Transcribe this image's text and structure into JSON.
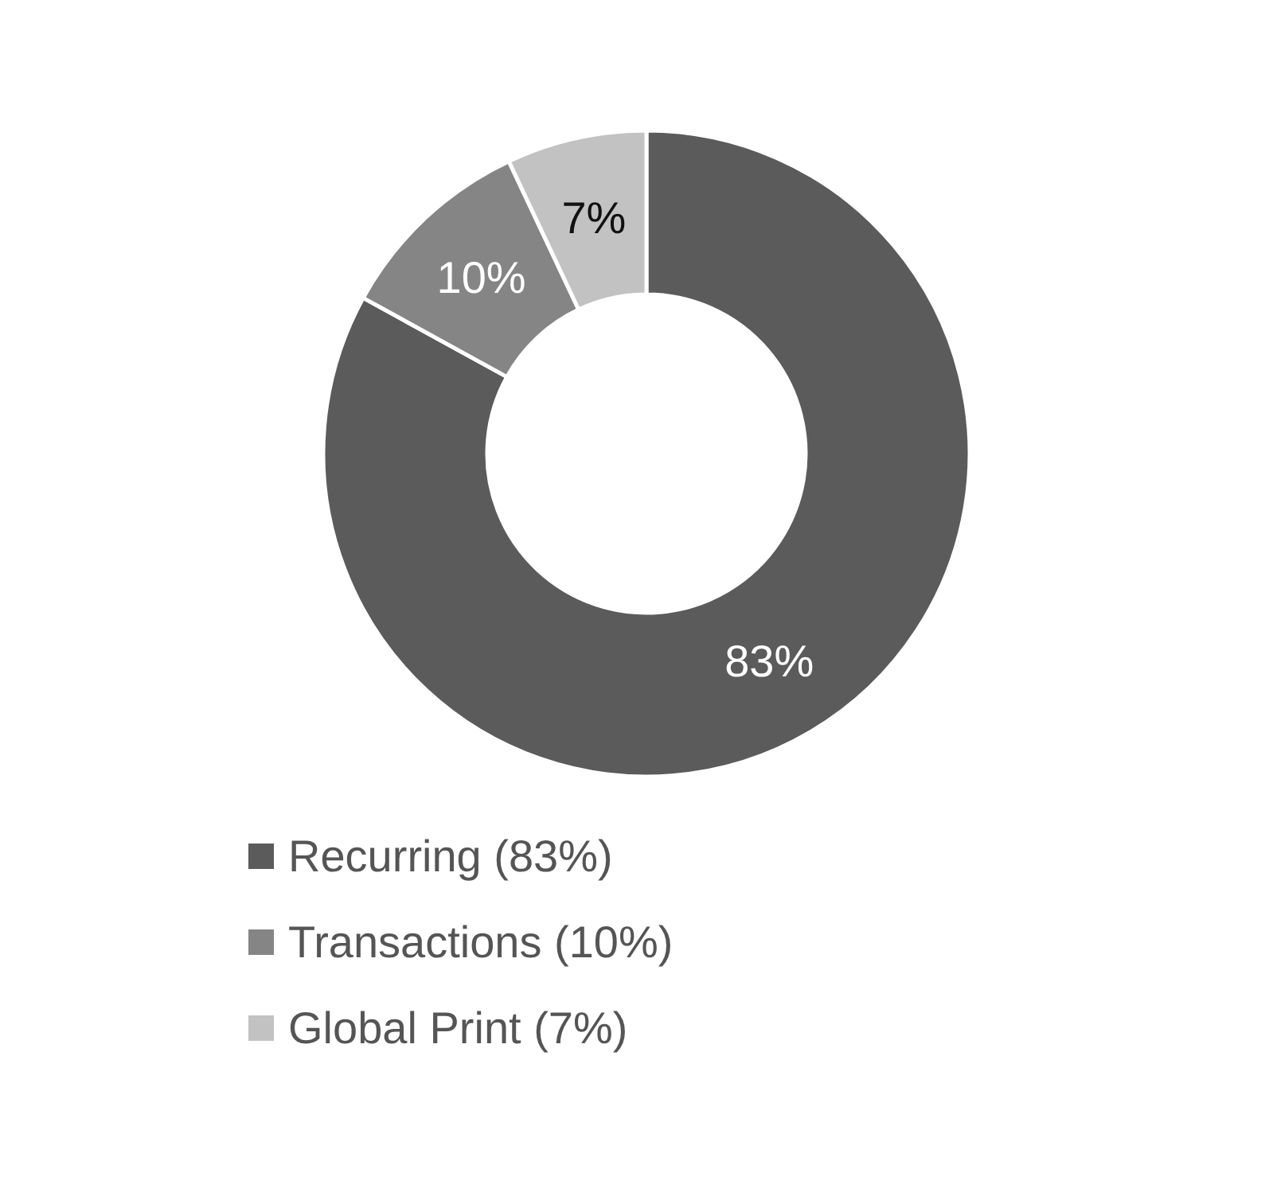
{
  "chart_data": {
    "type": "donut",
    "categories": [
      "Recurring (83%)",
      "Transactions (10%)",
      "Global Print (7%)"
    ],
    "values": [
      83,
      10,
      7
    ],
    "colors": [
      "#5b5b5b",
      "#858585",
      "#c2c2c2"
    ],
    "value_labels": [
      "83%",
      "10%",
      "7%"
    ],
    "legend": "bottom"
  }
}
